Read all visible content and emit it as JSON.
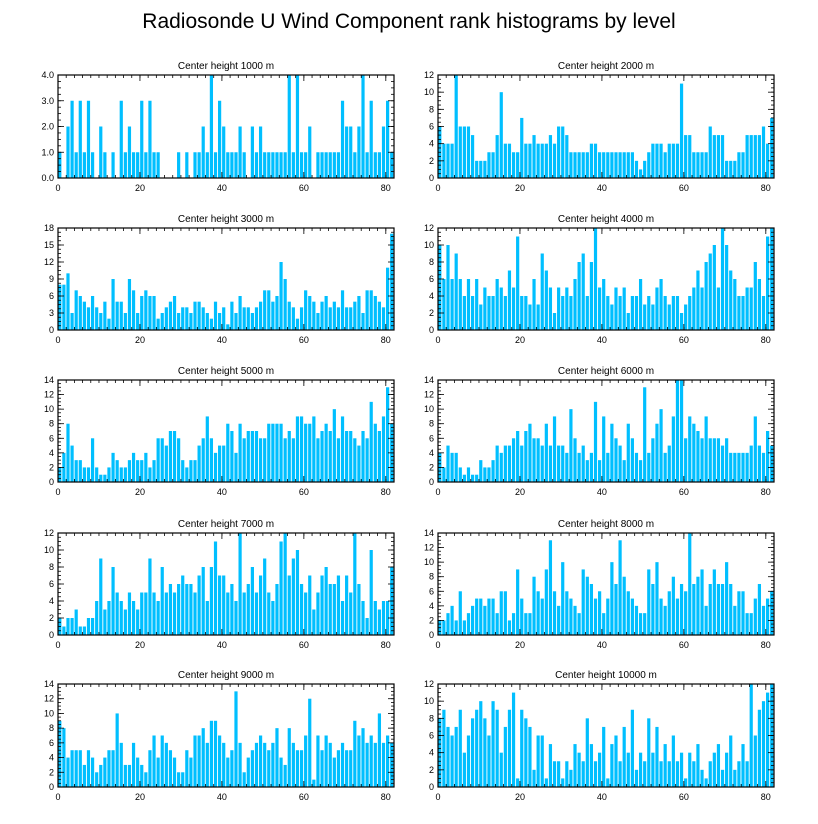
{
  "title": "Radiosonde U Wind Component rank histograms by level",
  "colors": {
    "bar": "#00BFFF",
    "axis": "#000000",
    "background": "#ffffff"
  },
  "chart_data": [
    {
      "type": "bar",
      "title": "Center height 1000 m",
      "xlim": [
        0,
        82
      ],
      "ylim": [
        0,
        4
      ],
      "xticks": [
        0,
        20,
        40,
        60,
        80
      ],
      "xtick_labels": [
        "0",
        "20",
        "40",
        "60",
        "80"
      ],
      "yticks": [
        0,
        1,
        2,
        3,
        4
      ],
      "ytick_labels": [
        "0.0",
        "1.0",
        "2.0",
        "3.0",
        "4.0"
      ],
      "values": [
        1,
        0,
        2,
        3,
        1,
        3,
        1,
        3,
        1,
        0,
        2,
        1,
        0,
        1,
        0,
        3,
        1,
        2,
        1,
        1,
        3,
        1,
        3,
        1,
        1,
        0,
        0,
        0,
        0,
        1,
        0,
        1,
        0,
        1,
        1,
        2,
        1,
        4,
        1,
        3,
        2,
        1,
        1,
        1,
        2,
        1,
        0,
        2,
        1,
        2,
        1,
        1,
        1,
        1,
        1,
        1,
        4,
        1,
        4,
        1,
        1,
        2,
        0,
        1,
        1,
        1,
        1,
        1,
        1,
        3,
        2,
        2,
        1,
        2,
        4,
        1,
        3,
        1,
        1,
        2,
        3,
        1
      ]
    },
    {
      "type": "bar",
      "title": "Center height 2000 m",
      "xlim": [
        0,
        82
      ],
      "ylim": [
        0,
        12
      ],
      "xticks": [
        0,
        20,
        40,
        60,
        80
      ],
      "xtick_labels": [
        "0",
        "20",
        "40",
        "60",
        "80"
      ],
      "yticks": [
        0,
        2,
        4,
        6,
        8,
        10,
        12
      ],
      "ytick_labels": [
        "0",
        "2",
        "4",
        "6",
        "8",
        "10",
        "12"
      ],
      "values": [
        6,
        4,
        4,
        4,
        12,
        6,
        6,
        6,
        5,
        2,
        2,
        2,
        3,
        3,
        5,
        10,
        4,
        4,
        3,
        3,
        7,
        4,
        4,
        5,
        4,
        4,
        4,
        5,
        4,
        6,
        6,
        5,
        3,
        3,
        3,
        3,
        3,
        4,
        4,
        3,
        3,
        3,
        3,
        3,
        3,
        3,
        3,
        3,
        2,
        1,
        2,
        3,
        4,
        4,
        4,
        3,
        4,
        4,
        4,
        11,
        5,
        5,
        3,
        3,
        3,
        3,
        6,
        5,
        5,
        5,
        2,
        2,
        2,
        3,
        3,
        5,
        5,
        5,
        5,
        6,
        4,
        7
      ]
    },
    {
      "type": "bar",
      "title": "Center height 3000 m",
      "xlim": [
        0,
        82
      ],
      "ylim": [
        0,
        18
      ],
      "xticks": [
        0,
        20,
        40,
        60,
        80
      ],
      "xtick_labels": [
        "0",
        "20",
        "40",
        "60",
        "80"
      ],
      "yticks": [
        0,
        3,
        6,
        9,
        12,
        15,
        18
      ],
      "ytick_labels": [
        "0",
        "3",
        "6",
        "9",
        "12",
        "15",
        "18"
      ],
      "values": [
        8,
        8,
        10,
        3,
        7,
        6,
        5,
        4,
        6,
        4,
        3,
        5,
        2,
        9,
        5,
        5,
        3,
        9,
        7,
        3,
        6,
        7,
        6,
        6,
        2,
        3,
        4,
        5,
        6,
        3,
        4,
        4,
        3,
        5,
        5,
        4,
        3,
        2,
        5,
        3,
        4,
        1,
        5,
        3,
        6,
        4,
        4,
        3,
        4,
        5,
        7,
        7,
        5,
        6,
        12,
        9,
        5,
        4,
        2,
        4,
        7,
        6,
        5,
        3,
        5,
        6,
        4,
        5,
        4,
        7,
        4,
        4,
        5,
        6,
        3,
        7,
        7,
        6,
        5,
        4,
        11,
        17
      ]
    },
    {
      "type": "bar",
      "title": "Center height 4000 m",
      "xlim": [
        0,
        82
      ],
      "ylim": [
        0,
        12
      ],
      "xticks": [
        0,
        20,
        40,
        60,
        80
      ],
      "xtick_labels": [
        "0",
        "20",
        "40",
        "60",
        "80"
      ],
      "yticks": [
        0,
        2,
        4,
        6,
        8,
        10,
        12
      ],
      "ytick_labels": [
        "0",
        "2",
        "4",
        "6",
        "8",
        "10",
        "12"
      ],
      "values": [
        10,
        6,
        10,
        6,
        9,
        6,
        4,
        6,
        4,
        6,
        3,
        5,
        4,
        4,
        6,
        5,
        4,
        7,
        5,
        11,
        4,
        4,
        3,
        6,
        3,
        9,
        7,
        5,
        2,
        5,
        4,
        5,
        4,
        6,
        8,
        9,
        4,
        8,
        12,
        5,
        6,
        4,
        3,
        5,
        4,
        5,
        2,
        4,
        4,
        6,
        3,
        4,
        3,
        5,
        6,
        4,
        3,
        4,
        4,
        2,
        3,
        4,
        5,
        7,
        5,
        8,
        9,
        10,
        5,
        12,
        10,
        7,
        6,
        4,
        4,
        5,
        5,
        8,
        6,
        4,
        11,
        12
      ]
    },
    {
      "type": "bar",
      "title": "Center height 5000 m",
      "xlim": [
        0,
        82
      ],
      "ylim": [
        0,
        14
      ],
      "xticks": [
        0,
        20,
        40,
        60,
        80
      ],
      "xtick_labels": [
        "0",
        "20",
        "40",
        "60",
        "80"
      ],
      "yticks": [
        0,
        2,
        4,
        6,
        8,
        10,
        12,
        14
      ],
      "ytick_labels": [
        "0",
        "2",
        "4",
        "6",
        "8",
        "10",
        "12",
        "14"
      ],
      "values": [
        2,
        4,
        8,
        5,
        3,
        3,
        2,
        2,
        6,
        2,
        1,
        1,
        2,
        4,
        3,
        2,
        2,
        3,
        4,
        3,
        3,
        4,
        2,
        3,
        6,
        6,
        5,
        7,
        7,
        6,
        3,
        2,
        3,
        3,
        5,
        6,
        9,
        6,
        4,
        5,
        5,
        8,
        7,
        4,
        8,
        6,
        7,
        7,
        7,
        6,
        6,
        8,
        8,
        8,
        8,
        6,
        7,
        6,
        9,
        9,
        8,
        8,
        9,
        6,
        7,
        8,
        7,
        10,
        6,
        9,
        7,
        7,
        6,
        5,
        7,
        6,
        11,
        8,
        7,
        9,
        13,
        8
      ]
    },
    {
      "type": "bar",
      "title": "Center height 6000 m",
      "xlim": [
        0,
        82
      ],
      "ylim": [
        0,
        14
      ],
      "xticks": [
        0,
        20,
        40,
        60,
        80
      ],
      "xtick_labels": [
        "0",
        "20",
        "40",
        "60",
        "80"
      ],
      "yticks": [
        0,
        2,
        4,
        6,
        8,
        10,
        12,
        14
      ],
      "ytick_labels": [
        "0",
        "2",
        "4",
        "6",
        "8",
        "10",
        "12",
        "14"
      ],
      "values": [
        4,
        2,
        5,
        4,
        4,
        2,
        1,
        2,
        1,
        1,
        3,
        2,
        2,
        3,
        5,
        4,
        5,
        5,
        6,
        7,
        5,
        7,
        8,
        6,
        6,
        5,
        8,
        5,
        9,
        5,
        5,
        4,
        10,
        6,
        4,
        5,
        3,
        4,
        11,
        3,
        9,
        4,
        8,
        6,
        5,
        3,
        8,
        6,
        4,
        3,
        13,
        4,
        6,
        8,
        10,
        4,
        5,
        9,
        14,
        14,
        6,
        9,
        8,
        7,
        6,
        9,
        6,
        6,
        6,
        5,
        6,
        4,
        4,
        4,
        4,
        4,
        5,
        9,
        5,
        4,
        7,
        5
      ]
    },
    {
      "type": "bar",
      "title": "Center height 7000 m",
      "xlim": [
        0,
        82
      ],
      "ylim": [
        0,
        12
      ],
      "xticks": [
        0,
        20,
        40,
        60,
        80
      ],
      "xtick_labels": [
        "0",
        "20",
        "40",
        "60",
        "80"
      ],
      "yticks": [
        0,
        2,
        4,
        6,
        8,
        10,
        12
      ],
      "ytick_labels": [
        "0",
        "2",
        "4",
        "6",
        "8",
        "10",
        "12"
      ],
      "values": [
        2,
        1,
        2,
        2,
        3,
        1,
        1,
        2,
        2,
        4,
        9,
        3,
        4,
        8,
        5,
        4,
        3,
        5,
        4,
        3,
        5,
        5,
        9,
        5,
        4,
        8,
        5,
        6,
        5,
        6,
        7,
        6,
        6,
        5,
        7,
        8,
        4,
        8,
        11,
        7,
        7,
        5,
        6,
        4,
        12,
        5,
        6,
        8,
        5,
        7,
        9,
        5,
        4,
        6,
        11,
        12,
        7,
        9,
        10,
        6,
        5,
        7,
        3,
        5,
        7,
        8,
        6,
        6,
        7,
        4,
        7,
        5,
        12,
        6,
        4,
        2,
        10,
        4,
        3,
        4,
        4,
        8
      ]
    },
    {
      "type": "bar",
      "title": "Center height 8000 m",
      "xlim": [
        0,
        82
      ],
      "ylim": [
        0,
        14
      ],
      "xticks": [
        0,
        20,
        40,
        60,
        80
      ],
      "xtick_labels": [
        "0",
        "20",
        "40",
        "60",
        "80"
      ],
      "yticks": [
        0,
        2,
        4,
        6,
        8,
        10,
        12,
        14
      ],
      "ytick_labels": [
        "0",
        "2",
        "4",
        "6",
        "8",
        "10",
        "12",
        "14"
      ],
      "values": [
        2,
        2,
        3,
        4,
        2,
        6,
        2,
        3,
        4,
        5,
        5,
        4,
        5,
        5,
        3,
        6,
        6,
        2,
        3,
        9,
        5,
        3,
        3,
        8,
        6,
        5,
        9,
        13,
        6,
        4,
        10,
        6,
        5,
        4,
        3,
        9,
        8,
        7,
        5,
        6,
        3,
        5,
        10,
        7,
        13,
        8,
        6,
        5,
        4,
        3,
        3,
        9,
        7,
        10,
        5,
        4,
        6,
        8,
        5,
        7,
        6,
        14,
        7,
        8,
        9,
        4,
        7,
        9,
        7,
        7,
        10,
        7,
        4,
        6,
        6,
        3,
        3,
        5,
        7,
        4,
        5,
        6
      ]
    },
    {
      "type": "bar",
      "title": "Center height 9000 m",
      "xlim": [
        0,
        82
      ],
      "ylim": [
        0,
        14
      ],
      "xticks": [
        0,
        20,
        40,
        60,
        80
      ],
      "xtick_labels": [
        "0",
        "20",
        "40",
        "60",
        "80"
      ],
      "yticks": [
        0,
        2,
        4,
        6,
        8,
        10,
        12,
        14
      ],
      "ytick_labels": [
        "0",
        "2",
        "4",
        "6",
        "8",
        "10",
        "12",
        "14"
      ],
      "values": [
        9,
        8,
        4,
        5,
        5,
        5,
        3,
        5,
        4,
        2,
        3,
        4,
        5,
        5,
        10,
        6,
        3,
        3,
        6,
        4,
        3,
        2,
        5,
        7,
        4,
        7,
        6,
        5,
        4,
        2,
        2,
        5,
        4,
        7,
        7,
        8,
        6,
        9,
        9,
        7,
        6,
        4,
        5,
        13,
        6,
        2,
        4,
        5,
        6,
        7,
        6,
        5,
        6,
        8,
        4,
        3,
        8,
        6,
        5,
        5,
        7,
        12,
        1,
        7,
        5,
        7,
        6,
        4,
        5,
        6,
        5,
        5,
        9,
        7,
        8,
        6,
        7,
        6,
        10,
        6,
        7,
        6
      ]
    },
    {
      "type": "bar",
      "title": "Center height 10000 m",
      "xlim": [
        0,
        82
      ],
      "ylim": [
        0,
        12
      ],
      "xticks": [
        0,
        20,
        40,
        60,
        80
      ],
      "xtick_labels": [
        "0",
        "20",
        "40",
        "60",
        "80"
      ],
      "yticks": [
        0,
        2,
        4,
        6,
        8,
        10,
        12
      ],
      "ytick_labels": [
        "0",
        "2",
        "4",
        "6",
        "8",
        "10",
        "12"
      ],
      "values": [
        8,
        9,
        7,
        6,
        7,
        9,
        4,
        6,
        8,
        9,
        10,
        8,
        6,
        10,
        9,
        4,
        7,
        9,
        11,
        1,
        9,
        8,
        7,
        2,
        6,
        6,
        1,
        5,
        3,
        3,
        1,
        3,
        2,
        5,
        4,
        3,
        8,
        5,
        3,
        4,
        7,
        1,
        5,
        6,
        3,
        7,
        4,
        9,
        2,
        4,
        3,
        8,
        4,
        7,
        3,
        5,
        3,
        6,
        3,
        4,
        1,
        4,
        3,
        5,
        2,
        1,
        3,
        4,
        5,
        2,
        4,
        6,
        2,
        3,
        5,
        3,
        12,
        6,
        9,
        10,
        11,
        12
      ]
    }
  ]
}
